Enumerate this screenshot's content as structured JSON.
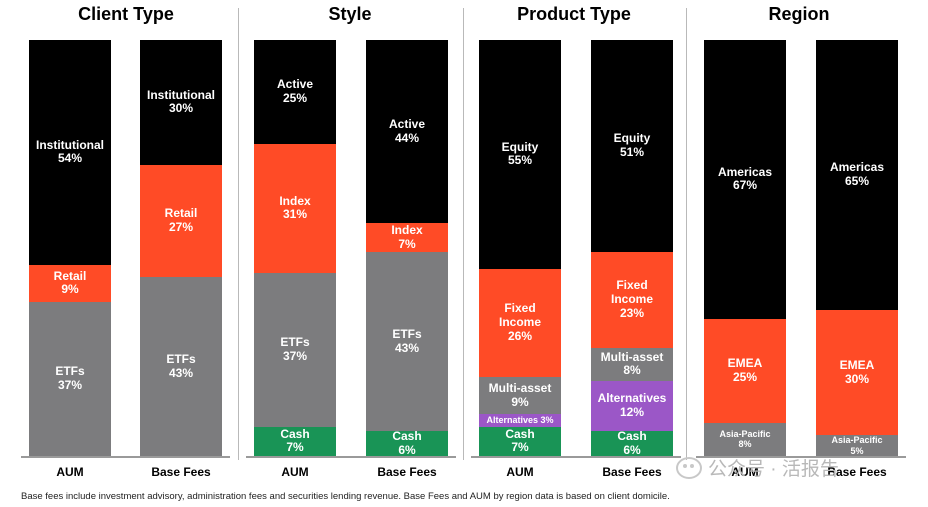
{
  "colors": {
    "Institutional": "#000000",
    "Retail": "#ff4b26",
    "ETFs": "#7c7c7e",
    "Active": "#000000",
    "Index": "#ff4b26",
    "Cash": "#199456",
    "Equity": "#000000",
    "Fixed Income": "#ff4b26",
    "Multi-asset": "#7c7c7e",
    "Alternatives": "#9b57c7",
    "Americas": "#000000",
    "EMEA": "#ff4b26",
    "Asia-Pacific": "#7c7c7e"
  },
  "chart_data": [
    {
      "type": "bar",
      "stacked": true,
      "title": "Client Type",
      "categories": [
        "AUM",
        "Base Fees"
      ],
      "unit": "%",
      "ylim": [
        0,
        100
      ],
      "series": [
        {
          "name": "ETFs",
          "values": [
            37,
            43
          ],
          "labels": [
            "ETFs\n37%",
            "ETFs\n43%"
          ]
        },
        {
          "name": "Retail",
          "values": [
            9,
            27
          ],
          "labels": [
            "Retail\n9%",
            "Retail\n27%"
          ]
        },
        {
          "name": "Institutional",
          "values": [
            54,
            30
          ],
          "labels": [
            "Institutional\n54%",
            "Institutional\n30%"
          ]
        }
      ]
    },
    {
      "type": "bar",
      "stacked": true,
      "title": "Style",
      "categories": [
        "AUM",
        "Base Fees"
      ],
      "unit": "%",
      "ylim": [
        0,
        100
      ],
      "series": [
        {
          "name": "Cash",
          "values": [
            7,
            6
          ],
          "labels": [
            "Cash\n7%",
            "Cash\n6%"
          ]
        },
        {
          "name": "ETFs",
          "values": [
            37,
            43
          ],
          "labels": [
            "ETFs\n37%",
            "ETFs\n43%"
          ]
        },
        {
          "name": "Index",
          "values": [
            31,
            7
          ],
          "labels": [
            "Index\n31%",
            "Index\n7%"
          ]
        },
        {
          "name": "Active",
          "values": [
            25,
            44
          ],
          "labels": [
            "Active\n25%",
            "Active\n44%"
          ]
        }
      ]
    },
    {
      "type": "bar",
      "stacked": true,
      "title": "Product Type",
      "categories": [
        "AUM",
        "Base Fees"
      ],
      "unit": "%",
      "ylim": [
        0,
        100
      ],
      "series": [
        {
          "name": "Cash",
          "values": [
            7,
            6
          ],
          "labels": [
            "Cash\n7%",
            "Cash\n6%"
          ]
        },
        {
          "name": "Alternatives",
          "values": [
            3,
            12
          ],
          "labels": [
            "Alternatives 3%",
            "Alternatives\n12%"
          ]
        },
        {
          "name": "Multi-asset",
          "values": [
            9,
            8
          ],
          "labels": [
            "Multi-asset\n9%",
            "Multi-asset\n8%"
          ]
        },
        {
          "name": "Fixed Income",
          "values": [
            26,
            23
          ],
          "labels": [
            "Fixed\nIncome\n26%",
            "Fixed\nIncome\n23%"
          ]
        },
        {
          "name": "Equity",
          "values": [
            55,
            51
          ],
          "labels": [
            "Equity\n55%",
            "Equity\n51%"
          ]
        }
      ]
    },
    {
      "type": "bar",
      "stacked": true,
      "title": "Region",
      "categories": [
        "AUM",
        "Base Fees"
      ],
      "unit": "%",
      "ylim": [
        0,
        100
      ],
      "series": [
        {
          "name": "Asia-Pacific",
          "values": [
            8,
            5
          ],
          "labels": [
            "Asia-Pacific\n8%",
            "Asia-Pacific\n5%"
          ]
        },
        {
          "name": "EMEA",
          "values": [
            25,
            30
          ],
          "labels": [
            "EMEA\n25%",
            "EMEA\n30%"
          ]
        },
        {
          "name": "Americas",
          "values": [
            67,
            65
          ],
          "labels": [
            "Americas\n67%",
            "Americas\n65%"
          ]
        }
      ]
    }
  ],
  "footnote": "Base fees include investment advisory, administration fees and securities lending revenue. Base Fees and AUM by region data is based on client domicile.",
  "watermark": "公众号 · 活报告"
}
